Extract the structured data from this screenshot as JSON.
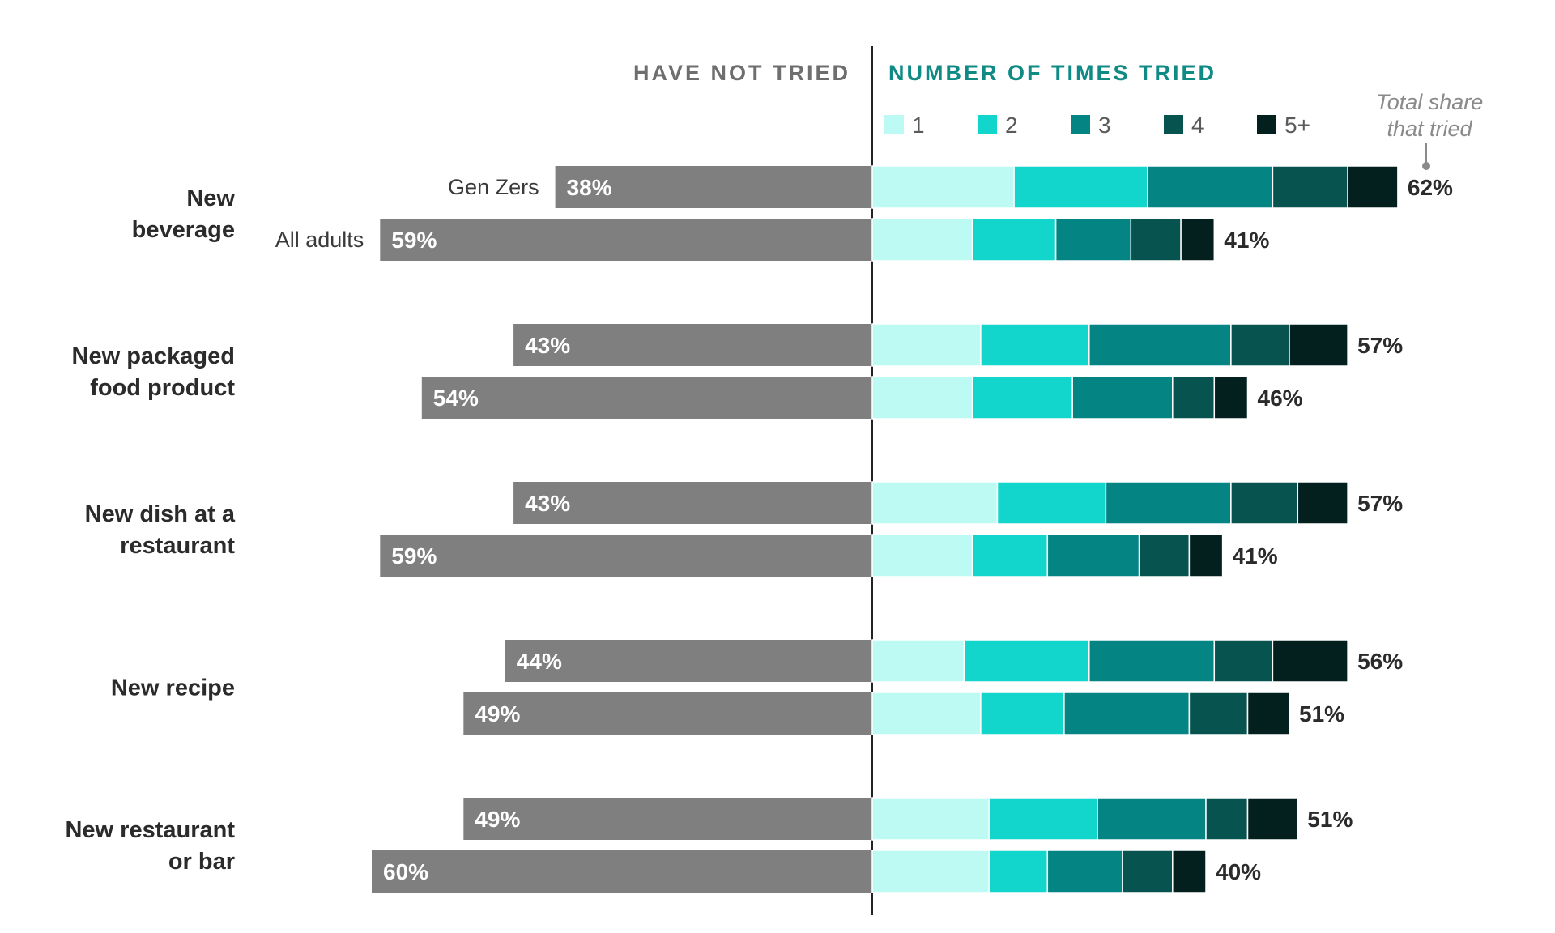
{
  "headers": {
    "left": "HAVE NOT TRIED",
    "right": "NUMBER OF TIMES TRIED",
    "total_note_line1": "Total share",
    "total_note_line2": "that tried"
  },
  "colors": {
    "not_tried": "#7f7f7f",
    "header_left": "#6e6e6e",
    "header_right": "#0f8a85",
    "segments": [
      "#bdfaf4",
      "#12d6cc",
      "#048583",
      "#07534f",
      "#03201f"
    ],
    "text_dark": "#2b2b2b",
    "note": "#8a8a8a"
  },
  "chart_data": {
    "type": "bar",
    "orientation": "horizontal-diverging",
    "groups": [
      "Gen Zers",
      "All adults"
    ],
    "legend": [
      "1",
      "2",
      "3",
      "4",
      "5+"
    ],
    "categories": [
      {
        "label": [
          "New",
          "beverage"
        ],
        "rows": [
          {
            "group": "Gen Zers",
            "not_tried": 38,
            "not_tried_label": "38%",
            "tried": [
              17,
              16,
              15,
              9,
              6
            ],
            "total_label": "62%"
          },
          {
            "group": "All adults",
            "not_tried": 59,
            "not_tried_label": "59%",
            "tried": [
              12,
              10,
              9,
              6,
              4
            ],
            "total_label": "41%"
          }
        ]
      },
      {
        "label": [
          "New packaged",
          "food product"
        ],
        "rows": [
          {
            "group": "Gen Zers",
            "not_tried": 43,
            "not_tried_label": "43%",
            "tried": [
              13,
              13,
              17,
              7,
              7
            ],
            "total_label": "57%"
          },
          {
            "group": "All adults",
            "not_tried": 54,
            "not_tried_label": "54%",
            "tried": [
              12,
              12,
              12,
              5,
              4
            ],
            "total_label": "46%"
          }
        ]
      },
      {
        "label": [
          "New dish at a",
          "restaurant"
        ],
        "rows": [
          {
            "group": "Gen Zers",
            "not_tried": 43,
            "not_tried_label": "43%",
            "tried": [
              15,
              13,
              15,
              8,
              6
            ],
            "total_label": "57%"
          },
          {
            "group": "All adults",
            "not_tried": 59,
            "not_tried_label": "59%",
            "tried": [
              12,
              9,
              11,
              6,
              4
            ],
            "total_label": "41%"
          }
        ]
      },
      {
        "label": [
          "New recipe"
        ],
        "rows": [
          {
            "group": "Gen Zers",
            "not_tried": 44,
            "not_tried_label": "44%",
            "tried": [
              11,
              15,
              15,
              7,
              9
            ],
            "total_label": "56%"
          },
          {
            "group": "All adults",
            "not_tried": 49,
            "not_tried_label": "49%",
            "tried": [
              13,
              10,
              15,
              7,
              5
            ],
            "total_label": "51%"
          }
        ]
      },
      {
        "label": [
          "New restaurant",
          "or bar"
        ],
        "rows": [
          {
            "group": "Gen Zers",
            "not_tried": 49,
            "not_tried_label": "49%",
            "tried": [
              14,
              13,
              13,
              5,
              6
            ],
            "total_label": "51%"
          },
          {
            "group": "All adults",
            "not_tried": 60,
            "not_tried_label": "60%",
            "tried": [
              14,
              7,
              9,
              6,
              4
            ],
            "total_label": "40%"
          }
        ]
      }
    ]
  }
}
